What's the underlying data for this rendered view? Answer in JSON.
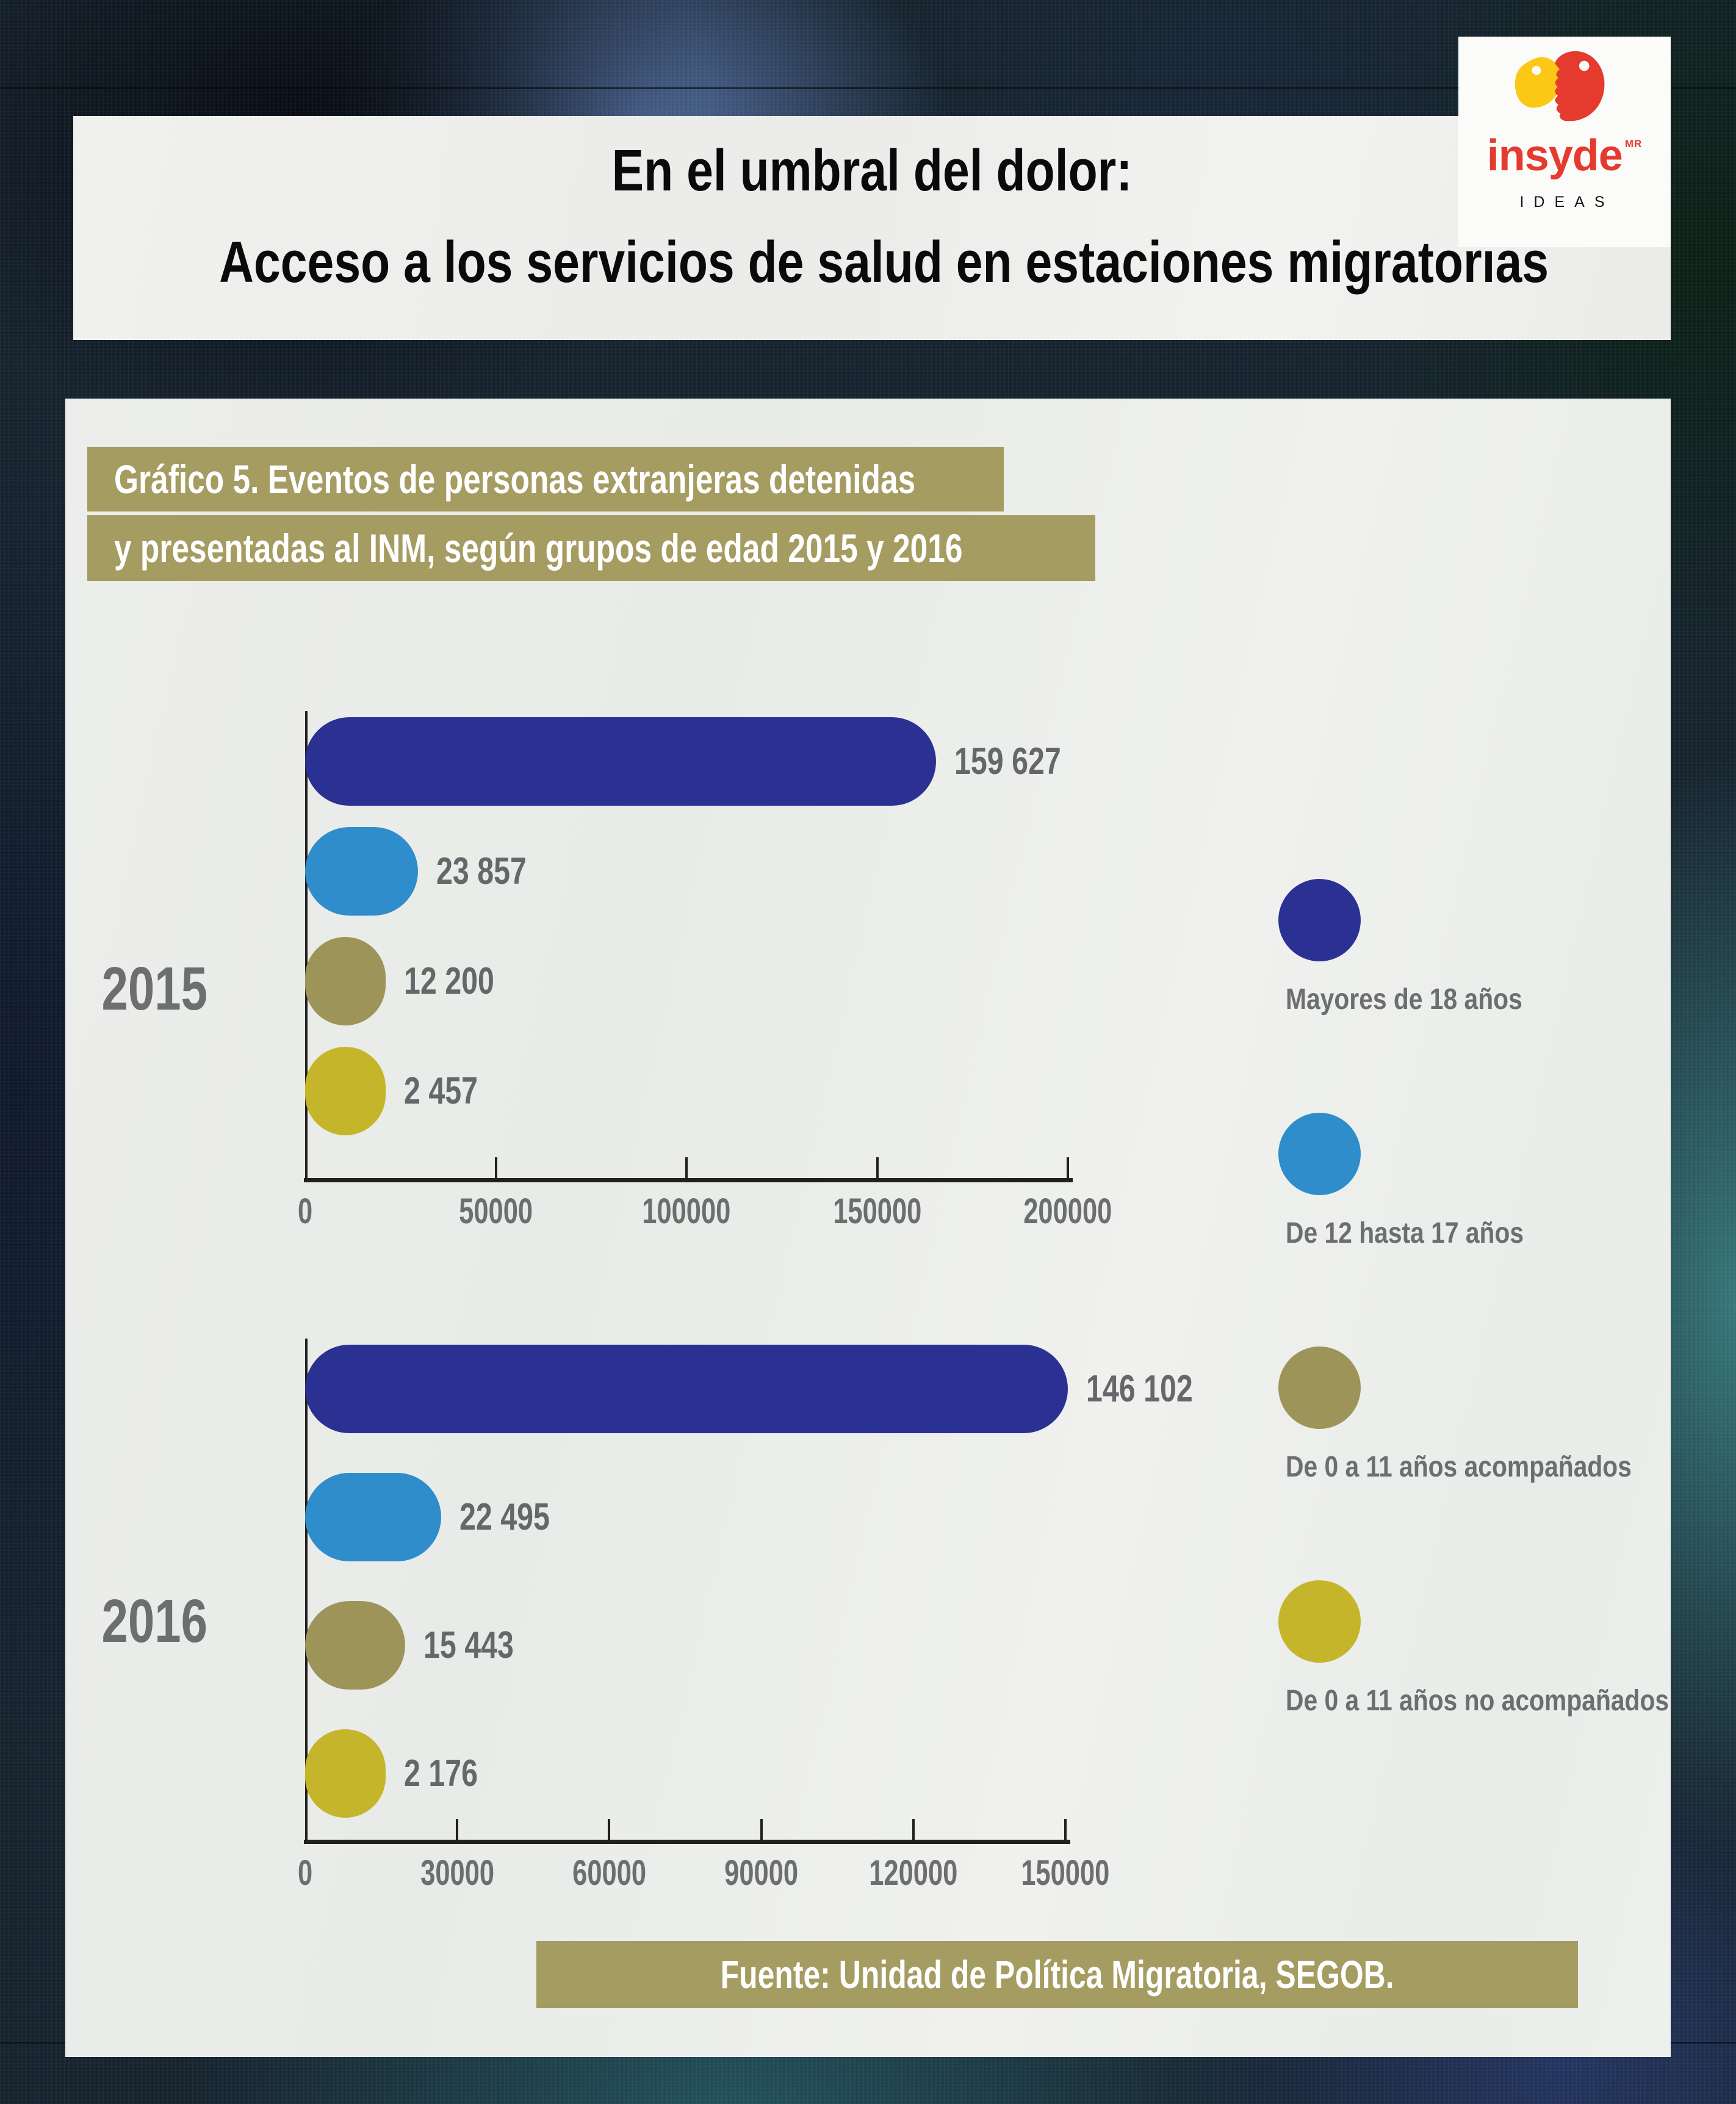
{
  "header": {
    "title_line1": "En el umbral del dolor:",
    "title_line2": "Acceso a los servicios de salud en estaciones migratorias"
  },
  "logo": {
    "brand": "insyde",
    "trademark": "MR",
    "tagline": "IDEAS",
    "red": "#e53a2e",
    "yellow": "#fcc818"
  },
  "chart_title": {
    "line1": "Gráfico 5. Eventos de personas extranjeras detenidas",
    "line2": "y presentadas al INM, según grupos de edad 2015 y 2016"
  },
  "chart_data": [
    {
      "type": "bar",
      "orientation": "horizontal",
      "year": "2015",
      "categories": [
        "Mayores de 18 años",
        "De 12 hasta 17 años",
        "De 0 a 11 años acompañados",
        "De 0 a 11 años no acompañados"
      ],
      "values": [
        159627,
        23857,
        12200,
        2457
      ],
      "value_labels": [
        "159 627",
        "23 857",
        "12 200",
        "2 457"
      ],
      "xlim": [
        0,
        200000
      ],
      "ticks": [
        0,
        50000,
        100000,
        150000,
        200000
      ],
      "tick_labels": [
        "0",
        "50000",
        "100000",
        "150000",
        "200000"
      ],
      "grid": false
    },
    {
      "type": "bar",
      "orientation": "horizontal",
      "year": "2016",
      "categories": [
        "Mayores de 18 años",
        "De 12 hasta 17 años",
        "De 0 a 11 años acompañados",
        "De 0 a 11 años no acompañados"
      ],
      "values": [
        146102,
        22495,
        15443,
        2176
      ],
      "value_labels": [
        "146 102",
        "22 495",
        "15 443",
        "2 176"
      ],
      "xlim": [
        0,
        150000
      ],
      "ticks": [
        0,
        30000,
        60000,
        90000,
        120000,
        150000
      ],
      "tick_labels": [
        "0",
        "30000",
        "60000",
        "90000",
        "120000",
        "150000"
      ],
      "grid": false
    }
  ],
  "legend": {
    "position": "right",
    "items": [
      {
        "label": "Mayores de 18 años",
        "color": "#2b3193"
      },
      {
        "label": "De 12 hasta 17 años",
        "color": "#2f8dcb"
      },
      {
        "label": "De 0 a 11 años acompañados",
        "color": "#9d9459"
      },
      {
        "label": "De 0 a 11 años no acompañados",
        "color": "#c5b52b"
      }
    ]
  },
  "source": {
    "text": "Fuente: Unidad de Política Migratoria, SEGOB."
  },
  "colors": {
    "bar_palette": [
      "#2b3193",
      "#2f8dcb",
      "#9d9459",
      "#c5b52b"
    ],
    "title_box_bg": "#a59c62",
    "source_bar_bg": "#a59c62",
    "text_gray": "#6d6e70",
    "axis": "#21201e",
    "header_bg": "#efefed",
    "panel_bg": "#ebedea"
  }
}
